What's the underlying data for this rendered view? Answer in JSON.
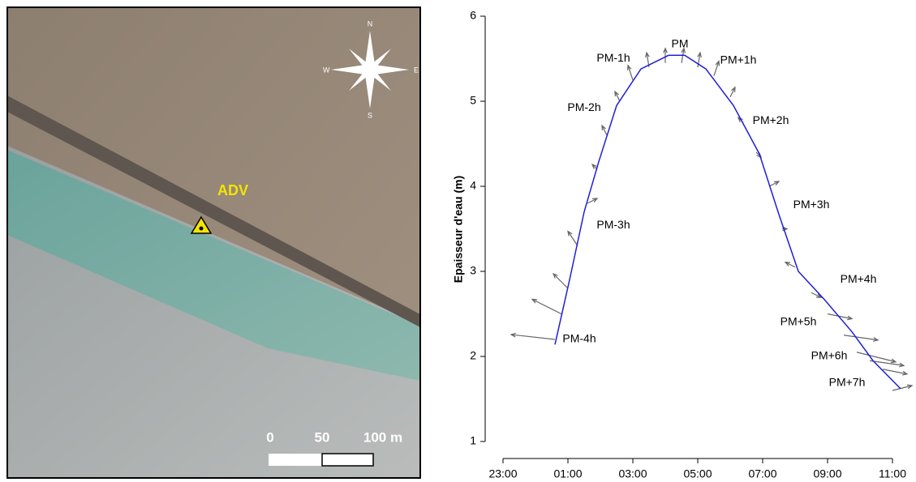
{
  "map": {
    "site_label": "ADV",
    "compass": {
      "N": "N",
      "E": "E",
      "S": "S",
      "W": "W"
    },
    "scale": [
      "0",
      "50",
      "100 m"
    ]
  },
  "chart_data": {
    "type": "line",
    "y_label": "Epaisseur d'eau (m)",
    "xlim": [
      22.45,
      35.6
    ],
    "xticks": [
      {
        "value": 23,
        "label": "23:00"
      },
      {
        "value": 25,
        "label": "01:00"
      },
      {
        "value": 27,
        "label": "03:00"
      },
      {
        "value": 29,
        "label": "05:00"
      },
      {
        "value": 31,
        "label": "07:00"
      },
      {
        "value": 33,
        "label": "09:00"
      },
      {
        "value": 35,
        "label": "11:00"
      }
    ],
    "ylim": [
      1,
      6
    ],
    "yticks": [
      1,
      2,
      3,
      4,
      5,
      6
    ],
    "series": [
      {
        "name": "Epaisseur d'eau",
        "color": "#1f1fd6",
        "x": [
          24.6,
          25.05,
          25.5,
          25.95,
          26.5,
          27.25,
          28.1,
          28.6,
          29.25,
          30.1,
          30.9,
          31.5,
          32.1,
          32.9,
          33.75,
          34.4,
          35.25
        ],
        "values": [
          2.14,
          2.9,
          3.7,
          4.29,
          4.95,
          5.38,
          5.54,
          5.54,
          5.38,
          4.95,
          4.38,
          3.67,
          3.0,
          2.67,
          2.29,
          1.95,
          1.62
        ]
      }
    ],
    "vectors": {
      "color": "#666666",
      "x": [
        24.6,
        24.8,
        25.0,
        25.3,
        25.6,
        25.9,
        26.2,
        26.6,
        27.0,
        27.5,
        28.0,
        28.5,
        29.0,
        29.5,
        30.0,
        30.4,
        30.8,
        31.2,
        31.6,
        32.0,
        32.5,
        33.0,
        33.5,
        33.9,
        34.3,
        34.7,
        35.0
      ],
      "y": [
        2.2,
        2.5,
        2.8,
        3.3,
        3.8,
        4.2,
        4.6,
        5.0,
        5.25,
        5.4,
        5.45,
        5.45,
        5.4,
        5.3,
        5.05,
        4.75,
        4.4,
        4.0,
        3.5,
        3.05,
        2.75,
        2.5,
        2.25,
        2.05,
        1.95,
        1.85,
        1.6
      ],
      "u": [
        -0.9,
        -0.6,
        -0.3,
        -0.2,
        0.2,
        -0.1,
        -0.1,
        -0.1,
        -0.1,
        -0.05,
        0.0,
        0.05,
        0.05,
        0.1,
        0.1,
        -0.1,
        0.1,
        0.2,
        0.1,
        -0.2,
        0.2,
        0.5,
        0.7,
        0.8,
        0.7,
        0.5,
        0.4
      ],
      "v": [
        0.1,
        0.3,
        0.3,
        0.3,
        0.1,
        0.1,
        0.2,
        0.2,
        0.3,
        0.3,
        0.3,
        0.3,
        0.3,
        0.3,
        0.2,
        0.1,
        -0.1,
        0.1,
        0.0,
        0.1,
        -0.1,
        -0.1,
        -0.1,
        -0.2,
        -0.1,
        -0.1,
        0.1
      ]
    },
    "annotations": [
      {
        "text": "PM-4h",
        "x": 25.35,
        "y": 2.2
      },
      {
        "text": "PM-3h",
        "x": 26.4,
        "y": 3.54
      },
      {
        "text": "PM-2h",
        "x": 25.5,
        "y": 4.92
      },
      {
        "text": "PM-1h",
        "x": 26.4,
        "y": 5.5
      },
      {
        "text": "PM",
        "x": 28.45,
        "y": 5.67
      },
      {
        "text": "PM+1h",
        "x": 30.25,
        "y": 5.48
      },
      {
        "text": "PM+2h",
        "x": 31.25,
        "y": 4.77
      },
      {
        "text": "PM+3h",
        "x": 32.5,
        "y": 3.78
      },
      {
        "text": "PM+4h",
        "x": 33.95,
        "y": 2.9
      },
      {
        "text": "PM+5h",
        "x": 32.1,
        "y": 2.4
      },
      {
        "text": "PM+6h",
        "x": 33.05,
        "y": 2.0
      },
      {
        "text": "PM+7h",
        "x": 33.6,
        "y": 1.69
      }
    ]
  }
}
